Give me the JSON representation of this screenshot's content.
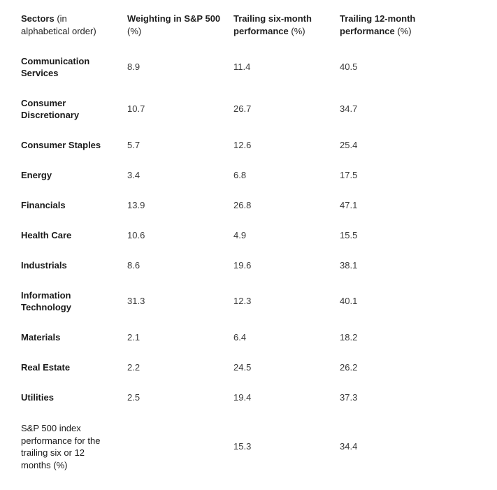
{
  "header": {
    "col1_bold": "Sectors",
    "col1_light": " (in alphabetical order)",
    "col2_bold": "Weighting in S&P 500",
    "col2_light": " (%)",
    "col3_bold": "Trailing six-month performance",
    "col3_light": " (%)",
    "col4_bold": "Trailing 12-month performance",
    "col4_light": " (%)"
  },
  "rows": [
    {
      "sector": "Communication Services",
      "weighting": "8.9",
      "six_month": "11.4",
      "twelve_month": "40.5"
    },
    {
      "sector": "Consumer Discretionary",
      "weighting": "10.7",
      "six_month": "26.7",
      "twelve_month": "34.7"
    },
    {
      "sector": "Consumer Staples",
      "weighting": "5.7",
      "six_month": "12.6",
      "twelve_month": "25.4"
    },
    {
      "sector": "Energy",
      "weighting": "3.4",
      "six_month": "6.8",
      "twelve_month": "17.5"
    },
    {
      "sector": "Financials",
      "weighting": "13.9",
      "six_month": "26.8",
      "twelve_month": "47.1"
    },
    {
      "sector": "Health Care",
      "weighting": "10.6",
      "six_month": "4.9",
      "twelve_month": "15.5"
    },
    {
      "sector": "Industrials",
      "weighting": "8.6",
      "six_month": "19.6",
      "twelve_month": "38.1"
    },
    {
      "sector": "Information Technology",
      "weighting": "31.3",
      "six_month": "12.3",
      "twelve_month": "40.1"
    },
    {
      "sector": "Materials",
      "weighting": "2.1",
      "six_month": "6.4",
      "twelve_month": "18.2"
    },
    {
      "sector": "Real Estate",
      "weighting": "2.2",
      "six_month": "24.5",
      "twelve_month": "26.2"
    },
    {
      "sector": "Utilities",
      "weighting": "2.5",
      "six_month": "19.4",
      "twelve_month": "37.3"
    }
  ],
  "index_row": {
    "label": "S&P 500 index performance for the trailing six or 12 months (%)",
    "weighting": "",
    "six_month": "15.3",
    "twelve_month": "34.4"
  }
}
